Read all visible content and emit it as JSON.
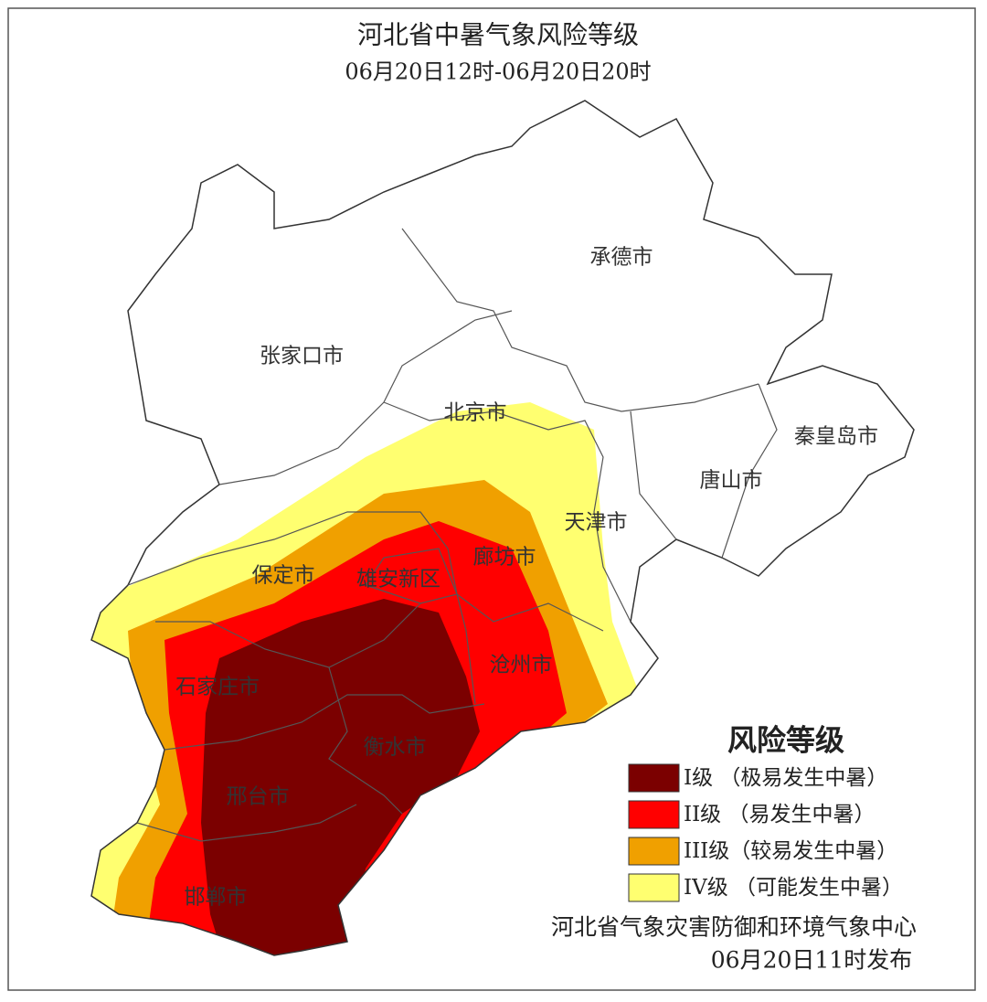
{
  "header": {
    "title": "河北省中暑气象风险等级",
    "subtitle": "06月20日12时-06月20日20时"
  },
  "map": {
    "labels": [
      "承德市",
      "张家口市",
      "北京市",
      "秦皇岛市",
      "唐山市",
      "天津市",
      "保定市",
      "廊坊市",
      "雄安新区",
      "沧州市",
      "石家庄市",
      "衡水市",
      "邢台市",
      "邯郸市"
    ]
  },
  "legend": {
    "title": "风险等级",
    "items": [
      {
        "label": "I级 （极易发生中暑）",
        "color": "#7b0000"
      },
      {
        "label": "II级 （易发生中暑）",
        "color": "#ff0000"
      },
      {
        "label": "III级（较易发生中暑）",
        "color": "#f0a000"
      },
      {
        "label": "IV级 （可能发生中暑）",
        "color": "#ffff70"
      }
    ]
  },
  "footer": {
    "issuer": "河北省气象灾害防御和环境气象中心",
    "issued": "06月20日11时发布"
  }
}
